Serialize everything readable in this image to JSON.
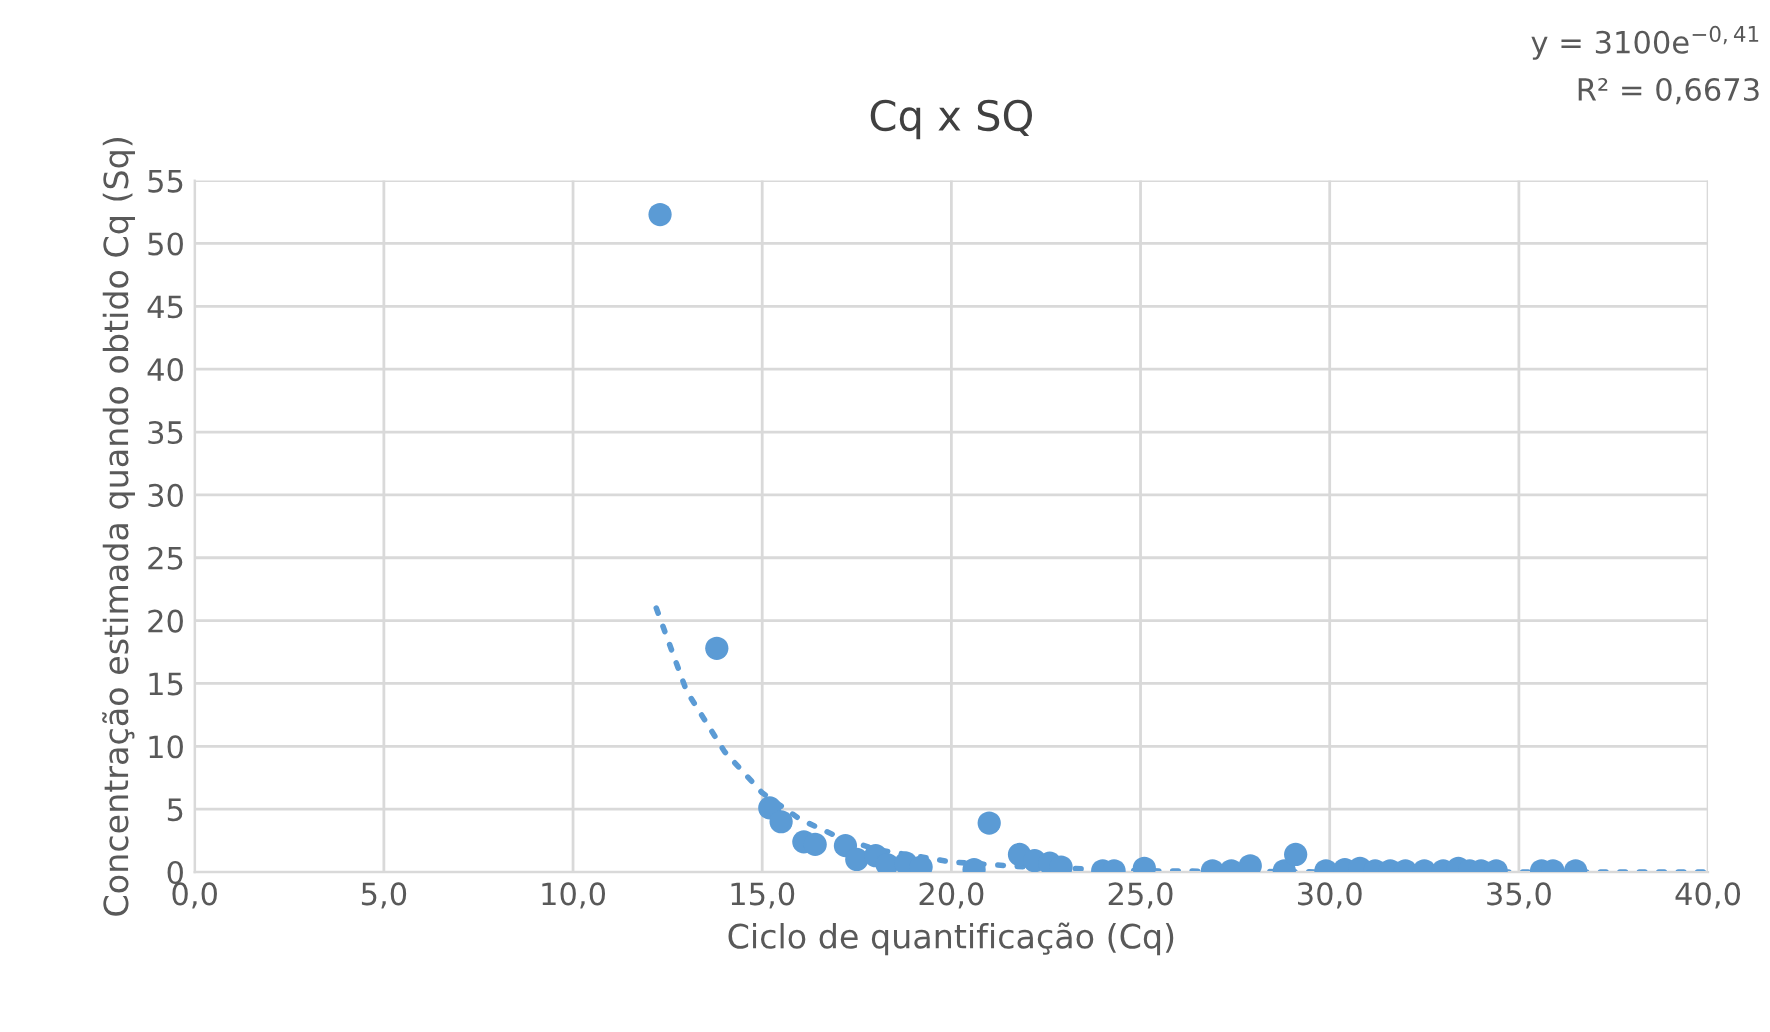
{
  "chart_data": {
    "type": "scatter",
    "title": "Cq x SQ",
    "xlabel": "Ciclo de quantificação (Cq)",
    "ylabel": "Concentração estimada quando obtido Cq (Sq)",
    "annotations": [
      "y = 3100e$^{−0,41}$",
      "R² = 0,6673"
    ],
    "xlim": [
      0,
      40
    ],
    "ylim": [
      0,
      55
    ],
    "xticks": [
      {
        "value": 0,
        "label": "0,0"
      },
      {
        "value": 5,
        "label": "5,0"
      },
      {
        "value": 10,
        "label": "10,0"
      },
      {
        "value": 15,
        "label": "15,0"
      },
      {
        "value": 20,
        "label": "20,0"
      },
      {
        "value": 25,
        "label": "25,0"
      },
      {
        "value": 30,
        "label": "30,0"
      },
      {
        "value": 35,
        "label": "35,0"
      },
      {
        "value": 40,
        "label": "40,0"
      }
    ],
    "yticks": [
      0,
      5,
      10,
      15,
      20,
      25,
      30,
      35,
      40,
      45,
      50,
      55
    ],
    "grid": true,
    "legend": false,
    "marker": "circle",
    "series": [
      {
        "color": "#5b9bd5",
        "x": [
          12.3,
          13.8,
          15.2,
          15.5,
          16.1,
          16.4,
          17.2,
          17.5,
          18.0,
          18.3,
          18.8,
          19.2,
          20.6,
          21.0,
          21.8,
          22.2,
          22.6,
          22.9,
          24.0,
          24.3,
          25.1,
          26.9,
          27.4,
          27.9,
          28.8,
          29.1,
          29.9,
          30.4,
          30.8,
          31.2,
          31.6,
          32.0,
          32.5,
          33.0,
          33.4,
          33.7,
          34.0,
          34.4,
          35.6,
          35.9,
          36.5
        ],
        "values": [
          52.3,
          17.8,
          5.1,
          4.0,
          2.4,
          2.2,
          2.1,
          1.0,
          1.3,
          0.6,
          0.7,
          0.4,
          0.2,
          3.9,
          1.4,
          0.9,
          0.7,
          0.4,
          0.1,
          0.1,
          0.3,
          0.1,
          0.1,
          0.5,
          0.1,
          1.4,
          0.1,
          0.2,
          0.3,
          0.1,
          0.1,
          0.1,
          0.1,
          0.1,
          0.3,
          0.1,
          0.1,
          0.1,
          0.1,
          0.1,
          0.1
        ]
      },
      {
        "type": "line",
        "color": "#5b9bd5",
        "line_style": "dotted",
        "marker": "none",
        "x": [
          12.2,
          13,
          14,
          15,
          16,
          17,
          18,
          20,
          22,
          25,
          30,
          35,
          40
        ],
        "values": [
          21,
          14.4,
          9.6,
          6.3,
          4.2,
          2.8,
          1.8,
          0.8,
          0.4,
          0.1,
          0,
          0,
          0
        ]
      }
    ]
  }
}
